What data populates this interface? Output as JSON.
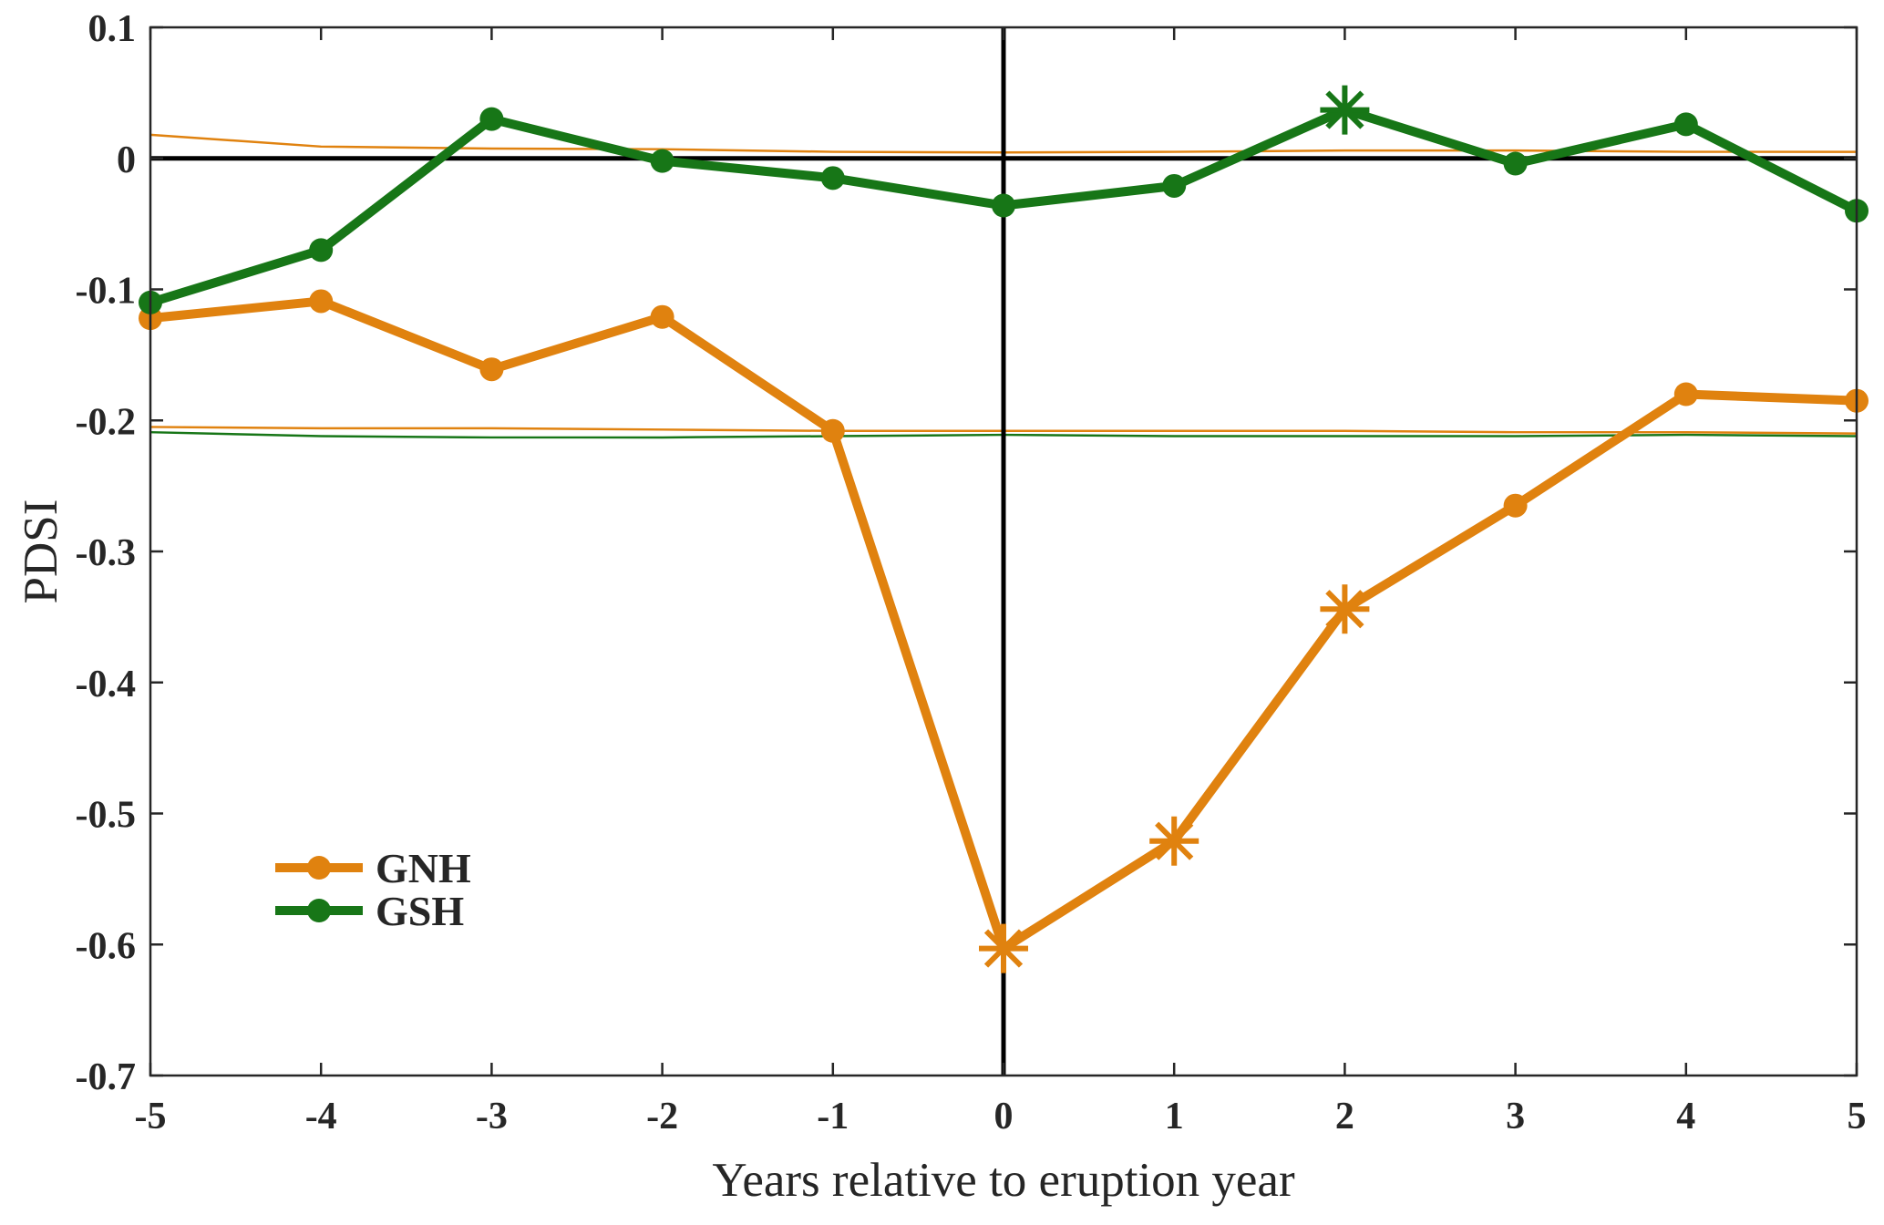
{
  "chart_data": {
    "type": "line",
    "title": "",
    "xlabel": "Years relative to eruption year",
    "ylabel": "PDSI",
    "xlim": [
      -5,
      5
    ],
    "ylim": [
      -0.7,
      0.1
    ],
    "grid": false,
    "x": [
      -5,
      -4,
      -3,
      -2,
      -1,
      0,
      1,
      2,
      3,
      4,
      5
    ],
    "xtick_labels": [
      "-5",
      "-4",
      "-3",
      "-2",
      "-1",
      "0",
      "1",
      "2",
      "3",
      "4",
      "5"
    ],
    "yticks": [
      0.1,
      0,
      -0.1,
      -0.2,
      -0.3,
      -0.4,
      -0.5,
      -0.6,
      -0.7
    ],
    "ytick_labels": [
      "0.1",
      "0",
      "-0.1",
      "-0.2",
      "-0.3",
      "-0.4",
      "-0.5",
      "-0.6",
      "-0.7"
    ],
    "series": [
      {
        "name": "GNH",
        "color": "#E0820F",
        "marker": "circle",
        "values": [
          -0.122,
          -0.109,
          -0.161,
          -0.121,
          -0.208,
          -0.603,
          -0.521,
          -0.344,
          -0.265,
          -0.18,
          -0.185
        ],
        "significant_years": [
          0,
          1,
          2
        ]
      },
      {
        "name": "GSH",
        "color": "#177617",
        "marker": "circle",
        "values": [
          -0.11,
          -0.07,
          0.03,
          -0.002,
          -0.015,
          -0.036,
          -0.021,
          0.037,
          -0.004,
          0.026,
          -0.04
        ],
        "significant_years": [
          2
        ]
      }
    ],
    "confidence_lines": [
      {
        "series": "GNH",
        "bound": "upper",
        "color": "#E0820F",
        "values": [
          0.018,
          0.009,
          0.0075,
          0.007,
          0.005,
          0.0045,
          0.005,
          0.006,
          0.006,
          0.005,
          0.005
        ]
      },
      {
        "series": "GNH",
        "bound": "lower",
        "color": "#E0820F",
        "values": [
          -0.205,
          -0.206,
          -0.206,
          -0.207,
          -0.208,
          -0.208,
          -0.208,
          -0.208,
          -0.209,
          -0.209,
          -0.21
        ]
      },
      {
        "series": "GSH",
        "bound": "lower",
        "color": "#177617",
        "values": [
          -0.209,
          -0.212,
          -0.213,
          -0.213,
          -0.212,
          -0.211,
          -0.212,
          -0.212,
          -0.212,
          -0.211,
          -0.212
        ]
      }
    ],
    "reference_lines": {
      "horizontal_zero": 0,
      "vertical_zero": 0,
      "color": "#000000"
    },
    "legend": {
      "position": "lower-left",
      "entries": [
        "GNH",
        "GSH"
      ]
    }
  }
}
